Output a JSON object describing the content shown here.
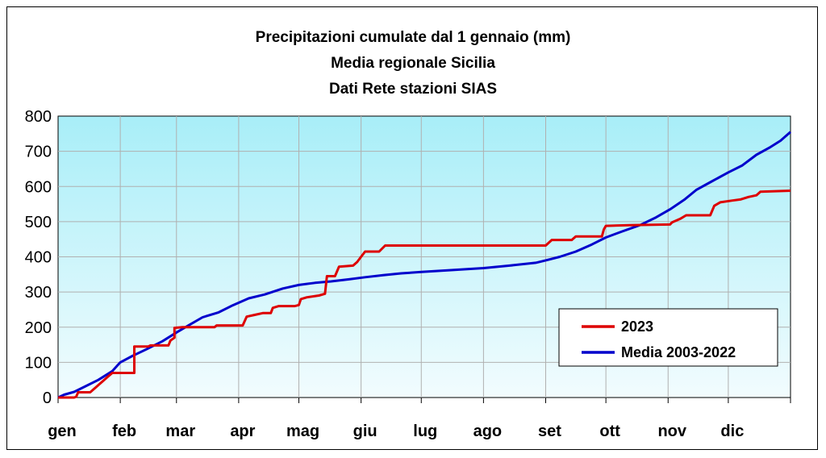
{
  "chart_data": {
    "type": "line",
    "title": "Precipitazioni cumulate dal 1 gennaio (mm)",
    "subtitle": "Media regionale Sicilia",
    "subtitle2": "Dati Rete stazioni SIAS",
    "xlabel": "",
    "ylabel": "",
    "ylim": [
      0,
      800
    ],
    "yticks": [
      0,
      100,
      200,
      300,
      400,
      500,
      600,
      700,
      800
    ],
    "xlim": [
      0,
      365
    ],
    "months": [
      {
        "label": "gen",
        "day": 0
      },
      {
        "label": "feb",
        "day": 31
      },
      {
        "label": "mar",
        "day": 59
      },
      {
        "label": "apr",
        "day": 90
      },
      {
        "label": "mag",
        "day": 120
      },
      {
        "label": "giu",
        "day": 151
      },
      {
        "label": "lug",
        "day": 181
      },
      {
        "label": "ago",
        "day": 212
      },
      {
        "label": "set",
        "day": 243
      },
      {
        "label": "ott",
        "day": 273
      },
      {
        "label": "nov",
        "day": 304
      },
      {
        "label": "dic",
        "day": 334
      }
    ],
    "grid": true,
    "legend_position": "bottom-right",
    "series": [
      {
        "name": "2023",
        "color": "#dd0000",
        "points": [
          [
            0,
            0
          ],
          [
            8,
            0
          ],
          [
            9,
            2
          ],
          [
            10,
            15
          ],
          [
            16,
            15
          ],
          [
            18,
            25
          ],
          [
            22,
            45
          ],
          [
            25,
            60
          ],
          [
            27,
            70
          ],
          [
            38,
            70
          ],
          [
            38,
            145
          ],
          [
            45,
            145
          ],
          [
            46,
            148
          ],
          [
            55,
            148
          ],
          [
            56,
            162
          ],
          [
            58,
            170
          ],
          [
            58,
            198
          ],
          [
            62,
            200
          ],
          [
            78,
            200
          ],
          [
            79,
            205
          ],
          [
            92,
            205
          ],
          [
            94,
            230
          ],
          [
            98,
            235
          ],
          [
            102,
            240
          ],
          [
            106,
            240
          ],
          [
            107,
            255
          ],
          [
            110,
            260
          ],
          [
            118,
            260
          ],
          [
            120,
            263
          ],
          [
            121,
            280
          ],
          [
            124,
            285
          ],
          [
            130,
            290
          ],
          [
            133,
            295
          ],
          [
            134,
            345
          ],
          [
            138,
            345
          ],
          [
            140,
            372
          ],
          [
            147,
            375
          ],
          [
            149,
            385
          ],
          [
            151,
            400
          ],
          [
            153,
            415
          ],
          [
            160,
            415
          ],
          [
            163,
            432
          ],
          [
            243,
            432
          ],
          [
            246,
            448
          ],
          [
            256,
            448
          ],
          [
            258,
            458
          ],
          [
            271,
            458
          ],
          [
            272,
            478
          ],
          [
            273,
            488
          ],
          [
            285,
            490
          ],
          [
            305,
            492
          ],
          [
            306,
            498
          ],
          [
            310,
            508
          ],
          [
            313,
            518
          ],
          [
            325,
            518
          ],
          [
            327,
            545
          ],
          [
            330,
            555
          ],
          [
            336,
            560
          ],
          [
            340,
            563
          ],
          [
            344,
            570
          ],
          [
            348,
            575
          ],
          [
            350,
            585
          ],
          [
            365,
            588
          ]
        ]
      },
      {
        "name": "Media 2003-2022",
        "color": "#0000cc",
        "points": [
          [
            0,
            0
          ],
          [
            3,
            8
          ],
          [
            8,
            16
          ],
          [
            13,
            30
          ],
          [
            20,
            50
          ],
          [
            27,
            75
          ],
          [
            31,
            100
          ],
          [
            37,
            118
          ],
          [
            44,
            137
          ],
          [
            52,
            160
          ],
          [
            59,
            185
          ],
          [
            65,
            205
          ],
          [
            72,
            228
          ],
          [
            80,
            242
          ],
          [
            87,
            262
          ],
          [
            95,
            282
          ],
          [
            103,
            293
          ],
          [
            112,
            310
          ],
          [
            120,
            320
          ],
          [
            128,
            326
          ],
          [
            136,
            330
          ],
          [
            145,
            336
          ],
          [
            153,
            342
          ],
          [
            162,
            348
          ],
          [
            171,
            353
          ],
          [
            181,
            357
          ],
          [
            195,
            362
          ],
          [
            212,
            368
          ],
          [
            225,
            375
          ],
          [
            238,
            383
          ],
          [
            243,
            390
          ],
          [
            250,
            400
          ],
          [
            258,
            415
          ],
          [
            266,
            435
          ],
          [
            273,
            455
          ],
          [
            281,
            472
          ],
          [
            290,
            490
          ],
          [
            298,
            512
          ],
          [
            305,
            535
          ],
          [
            312,
            562
          ],
          [
            318,
            590
          ],
          [
            325,
            612
          ],
          [
            334,
            640
          ],
          [
            341,
            660
          ],
          [
            348,
            690
          ],
          [
            355,
            712
          ],
          [
            360,
            730
          ],
          [
            365,
            755
          ]
        ]
      }
    ]
  }
}
